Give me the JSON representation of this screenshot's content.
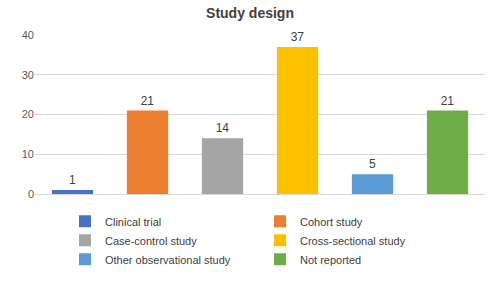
{
  "chart_data": {
    "type": "bar",
    "title": "Study design",
    "categories": [
      "Clinical trial",
      "Cohort study",
      "Case-control study",
      "Cross-sectional study",
      "Other observational study",
      "Not reported"
    ],
    "values": [
      1,
      21,
      14,
      37,
      5,
      21
    ],
    "colors": [
      "#4472c4",
      "#ed7d31",
      "#a5a5a5",
      "#ffc000",
      "#5b9bd5",
      "#70ad47"
    ],
    "ylim": [
      0,
      40
    ],
    "yticks": [
      0,
      10,
      20,
      30,
      40
    ],
    "grid": true,
    "legend": "bottom",
    "data_labels": true,
    "tick_labels": "y"
  }
}
